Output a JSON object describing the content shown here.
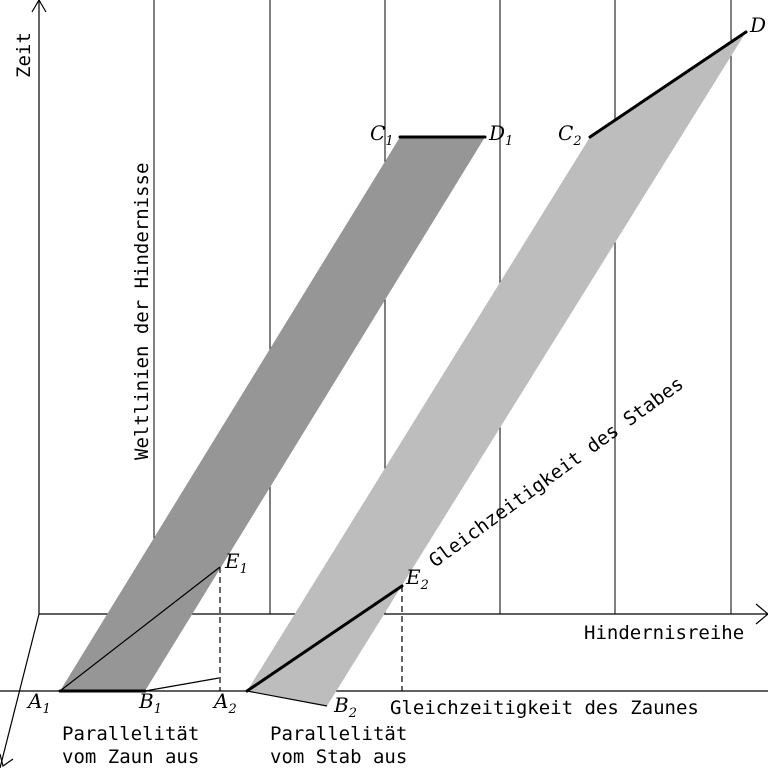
{
  "labels": {
    "zeit": "Zeit",
    "weltlinien": "Weltlinien der Hindernisse",
    "hindernisreihe": "Hindernisreihe",
    "gleichzeitigkeit_stabes": "Gleichzeitigkeit des Stabes",
    "gleichzeitigkeit_zaunes": "Gleichzeitigkeit des Zaunes",
    "parallel_zaun_1": "Parallelität",
    "parallel_zaun_2": "vom Zaun aus",
    "parallel_stab_1": "Parallelität",
    "parallel_stab_2": "vom Stab aus"
  },
  "points": {
    "A1": {
      "letter": "A",
      "index": "1"
    },
    "B1": {
      "letter": "B",
      "index": "1"
    },
    "A2": {
      "letter": "A",
      "index": "2"
    },
    "B2": {
      "letter": "B",
      "index": "2"
    },
    "C1": {
      "letter": "C",
      "index": "1"
    },
    "D1": {
      "letter": "D",
      "index": "1"
    },
    "C2": {
      "letter": "C",
      "index": "2"
    },
    "D": {
      "letter": "D",
      "index": ""
    },
    "E1": {
      "letter": "E",
      "index": "1"
    },
    "E2": {
      "letter": "E",
      "index": "2"
    }
  },
  "colors": {
    "dark_band": "#969696",
    "light_band": "#bdbdbd",
    "lines": "#000000",
    "background": "#ffffff"
  }
}
